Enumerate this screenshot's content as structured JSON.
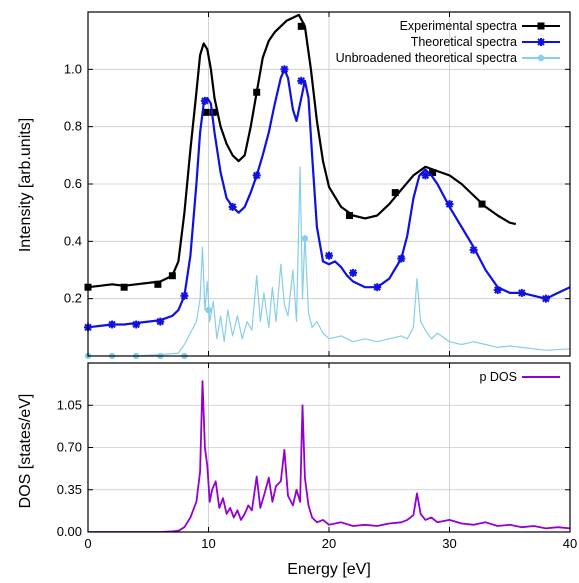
{
  "chart_data": [
    {
      "type": "line",
      "panel": "top",
      "xlabel": "",
      "ylabel": "Intensity [arb.units]",
      "xlim": [
        0,
        40
      ],
      "ylim": [
        0,
        1.2
      ],
      "yticks": [
        "0.2",
        "0.4",
        "0.6",
        "0.8",
        "1.0"
      ],
      "grid": true,
      "legend_position": "top-right",
      "series": [
        {
          "name": "Experimental spectra",
          "color": "#000000",
          "marker": "square",
          "x": [
            0,
            1,
            2,
            3,
            4,
            5,
            6,
            7,
            7.5,
            8,
            8.5,
            9,
            9.3,
            9.6,
            9.9,
            10.2,
            10.5,
            11,
            11.5,
            12,
            12.5,
            13,
            13.5,
            14,
            14.5,
            15,
            15.5,
            16,
            16.5,
            17,
            17.5,
            18,
            18.5,
            19,
            19.5,
            20,
            21,
            22,
            23,
            24,
            25,
            26,
            27,
            28,
            29,
            30,
            31,
            32,
            33,
            34,
            35,
            35.5
          ],
          "y": [
            0.24,
            0.245,
            0.25,
            0.245,
            0.25,
            0.255,
            0.26,
            0.28,
            0.33,
            0.5,
            0.72,
            0.92,
            1.05,
            1.09,
            1.07,
            1.0,
            0.9,
            0.8,
            0.74,
            0.7,
            0.68,
            0.7,
            0.8,
            0.92,
            1.04,
            1.1,
            1.13,
            1.15,
            1.17,
            1.18,
            1.19,
            1.15,
            1.0,
            0.82,
            0.68,
            0.59,
            0.52,
            0.49,
            0.48,
            0.49,
            0.53,
            0.58,
            0.63,
            0.66,
            0.645,
            0.63,
            0.6,
            0.56,
            0.52,
            0.49,
            0.465,
            0.46
          ],
          "markers_x": [
            0,
            3,
            5.8,
            7,
            9.8,
            10.4,
            14,
            17.7,
            21.7,
            25.5,
            28.6,
            32.7
          ],
          "markers_y": [
            0.24,
            0.24,
            0.25,
            0.28,
            0.85,
            0.85,
            0.92,
            1.15,
            0.49,
            0.57,
            0.64,
            0.53
          ]
        },
        {
          "name": "Theoretical spectra",
          "color": "#1010e0",
          "marker": "star",
          "x": [
            0,
            1,
            2,
            3,
            4,
            5,
            6,
            7,
            7.5,
            8,
            8.5,
            9,
            9.3,
            9.6,
            9.9,
            10.2,
            10.5,
            11,
            11.5,
            12,
            12.5,
            13,
            13.5,
            14,
            14.5,
            15,
            15.5,
            16,
            16.3,
            16.6,
            17,
            17.3,
            17.6,
            18,
            18.3,
            18.6,
            19,
            19.5,
            20,
            20.5,
            21,
            21.5,
            22,
            23,
            24,
            25,
            26,
            26.5,
            27,
            27.5,
            28,
            28.5,
            29,
            30,
            31,
            32,
            33,
            34,
            35,
            36,
            37,
            38,
            39,
            40
          ],
          "y": [
            0.1,
            0.105,
            0.11,
            0.11,
            0.115,
            0.12,
            0.125,
            0.14,
            0.16,
            0.21,
            0.35,
            0.6,
            0.78,
            0.88,
            0.9,
            0.88,
            0.78,
            0.64,
            0.55,
            0.52,
            0.5,
            0.52,
            0.57,
            0.63,
            0.7,
            0.78,
            0.88,
            0.97,
            1.0,
            0.97,
            0.86,
            0.82,
            0.88,
            0.96,
            0.9,
            0.7,
            0.45,
            0.33,
            0.32,
            0.33,
            0.31,
            0.28,
            0.26,
            0.24,
            0.24,
            0.27,
            0.34,
            0.42,
            0.55,
            0.63,
            0.65,
            0.63,
            0.6,
            0.52,
            0.45,
            0.38,
            0.3,
            0.24,
            0.22,
            0.22,
            0.21,
            0.2,
            0.22,
            0.24
          ],
          "markers_x": [
            0,
            2,
            4,
            6,
            8,
            9.7,
            12,
            14,
            16.3,
            17.7,
            20,
            22,
            24,
            26,
            28,
            30,
            32,
            34,
            36,
            38
          ],
          "markers_y": [
            0.1,
            0.11,
            0.11,
            0.12,
            0.21,
            0.89,
            0.52,
            0.63,
            1.0,
            0.96,
            0.35,
            0.29,
            0.24,
            0.34,
            0.63,
            0.53,
            0.37,
            0.23,
            0.22,
            0.2
          ]
        },
        {
          "name": "Unbroadened theoretical spectra",
          "color": "#87ceeb",
          "marker": "circle",
          "x": [
            0,
            2,
            4,
            6,
            7.5,
            8,
            8.5,
            9,
            9.3,
            9.5,
            9.7,
            9.9,
            10.1,
            10.4,
            10.7,
            11,
            11.3,
            11.6,
            12,
            12.4,
            12.8,
            13.2,
            13.6,
            14,
            14.3,
            14.6,
            15,
            15.3,
            15.6,
            16,
            16.3,
            16.6,
            17,
            17.3,
            17.6,
            17.8,
            18,
            18.3,
            18.6,
            19,
            19.5,
            20,
            21,
            22,
            23,
            24,
            25,
            26,
            26.5,
            27,
            27.3,
            27.6,
            28,
            28.5,
            29,
            30,
            31,
            32,
            33,
            34,
            35,
            36,
            38,
            40
          ],
          "y": [
            0,
            0,
            0,
            0.005,
            0.01,
            0.04,
            0.08,
            0.12,
            0.2,
            0.38,
            0.16,
            0.26,
            0.12,
            0.19,
            0.06,
            0.14,
            0.05,
            0.16,
            0.07,
            0.14,
            0.06,
            0.12,
            0.09,
            0.28,
            0.12,
            0.22,
            0.1,
            0.24,
            0.12,
            0.32,
            0.18,
            0.14,
            0.3,
            0.12,
            0.66,
            0.2,
            0.42,
            0.15,
            0.1,
            0.12,
            0.08,
            0.06,
            0.07,
            0.05,
            0.06,
            0.05,
            0.06,
            0.07,
            0.06,
            0.1,
            0.27,
            0.12,
            0.09,
            0.06,
            0.08,
            0.05,
            0.04,
            0.05,
            0.04,
            0.03,
            0.035,
            0.03,
            0.02,
            0.025
          ],
          "markers_x": [
            0,
            2,
            4,
            6,
            8,
            10,
            18
          ],
          "markers_y": [
            0,
            0,
            0,
            0,
            0,
            0.16,
            0.41
          ]
        }
      ]
    },
    {
      "type": "line",
      "panel": "bottom",
      "xlabel": "Energy [eV]",
      "ylabel": "DOS [states/eV]",
      "xlim": [
        0,
        40
      ],
      "ylim": [
        0,
        1.4
      ],
      "xticks": [
        "0",
        "10",
        "20",
        "30",
        "40"
      ],
      "yticks": [
        "0.00",
        "0.35",
        "0.70",
        "1.05"
      ],
      "grid": true,
      "legend_position": "top-right",
      "series": [
        {
          "name": "p DOS",
          "color": "#9400d3",
          "x": [
            0,
            6,
            7,
            7.5,
            8,
            8.5,
            9,
            9.3,
            9.5,
            9.7,
            9.9,
            10.1,
            10.3,
            10.6,
            10.9,
            11.2,
            11.5,
            11.8,
            12.1,
            12.4,
            12.7,
            13,
            13.3,
            13.6,
            14,
            14.3,
            14.6,
            15,
            15.3,
            15.6,
            16,
            16.3,
            16.6,
            17,
            17.3,
            17.6,
            17.8,
            18,
            18.3,
            18.6,
            19,
            19.5,
            20,
            21,
            22,
            23,
            24,
            25,
            26,
            26.5,
            27,
            27.3,
            27.6,
            28,
            28.5,
            29,
            30,
            31,
            32,
            33,
            34,
            35,
            36,
            37,
            38,
            39,
            40
          ],
          "y": [
            0,
            0,
            0.005,
            0.01,
            0.04,
            0.12,
            0.25,
            0.5,
            1.25,
            0.7,
            0.55,
            0.25,
            0.35,
            0.42,
            0.2,
            0.28,
            0.15,
            0.2,
            0.12,
            0.18,
            0.1,
            0.15,
            0.22,
            0.18,
            0.46,
            0.2,
            0.3,
            0.45,
            0.25,
            0.38,
            0.42,
            0.68,
            0.3,
            0.22,
            0.35,
            0.25,
            1.05,
            0.45,
            0.22,
            0.12,
            0.08,
            0.1,
            0.06,
            0.08,
            0.05,
            0.06,
            0.05,
            0.07,
            0.08,
            0.1,
            0.14,
            0.32,
            0.15,
            0.1,
            0.12,
            0.08,
            0.1,
            0.07,
            0.06,
            0.08,
            0.05,
            0.06,
            0.04,
            0.05,
            0.03,
            0.04,
            0.03
          ]
        }
      ]
    }
  ]
}
